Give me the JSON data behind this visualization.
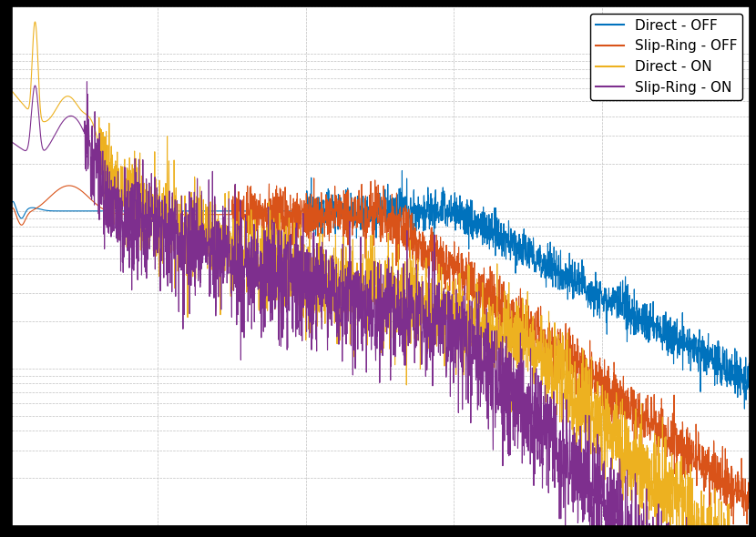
{
  "line_colors": {
    "direct_off": "#0072bd",
    "sr_off": "#d95319",
    "direct_on": "#edb120",
    "sr_on": "#7e2f8e"
  },
  "legend_labels": [
    "Direct - OFF",
    "Slip-Ring - OFF",
    "Direct - ON",
    "Slip-Ring - ON"
  ],
  "background_color": "#ffffff",
  "figure_background": "#000000",
  "grid_color": "#c0c0c0",
  "grid_style": "--",
  "grid_linewidth": 0.5,
  "line_width": 0.8
}
